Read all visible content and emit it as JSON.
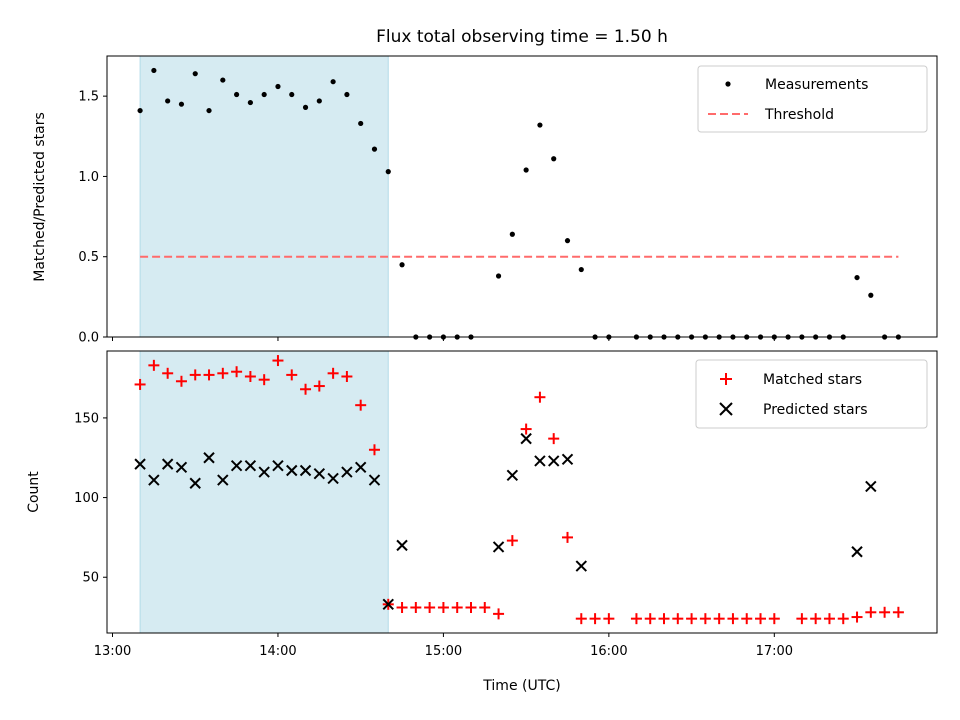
{
  "title": "Flux total observing time = 1.50 h",
  "colors": {
    "shade": "#add8e6",
    "threshold": "#ff6b6b",
    "matched": "#ff0000",
    "predicted": "#000000",
    "measure": "#000000"
  },
  "chart_data": [
    {
      "type": "scatter",
      "ylabel": "Matched/Predicted stars",
      "xlabel": "",
      "xlim": [
        "12:58",
        "17:59"
      ],
      "ylim": [
        0,
        1.75
      ],
      "yticks": [
        "0.0",
        "0.5",
        "1.0",
        "1.5"
      ],
      "shaded_interval": [
        "13:10",
        "14:40"
      ],
      "legend_position": "top-right",
      "series": [
        {
          "name": "Measurements",
          "marker": "dot",
          "x": [
            "13:10",
            "13:15",
            "13:20",
            "13:25",
            "13:30",
            "13:35",
            "13:40",
            "13:45",
            "13:50",
            "13:55",
            "14:00",
            "14:05",
            "14:10",
            "14:15",
            "14:20",
            "14:25",
            "14:30",
            "14:35",
            "14:40",
            "14:45",
            "14:50",
            "14:55",
            "15:00",
            "15:05",
            "15:10",
            "15:20",
            "15:25",
            "15:30",
            "15:35",
            "15:40",
            "15:45",
            "15:50",
            "15:55",
            "16:00",
            "16:10",
            "16:15",
            "16:20",
            "16:25",
            "16:30",
            "16:35",
            "16:40",
            "16:45",
            "16:50",
            "16:55",
            "17:00",
            "17:05",
            "17:10",
            "17:15",
            "17:20",
            "17:25",
            "17:30",
            "17:35",
            "17:40",
            "17:45"
          ],
          "y": [
            1.41,
            1.66,
            1.47,
            1.45,
            1.64,
            1.41,
            1.6,
            1.51,
            1.46,
            1.51,
            1.56,
            1.51,
            1.43,
            1.47,
            1.59,
            1.51,
            1.33,
            1.17,
            1.03,
            0.45,
            0,
            0,
            0,
            0,
            0,
            0.38,
            0.64,
            1.04,
            1.32,
            1.11,
            0.6,
            0.42,
            0,
            0,
            0,
            0,
            0,
            0,
            0,
            0,
            0,
            0,
            0,
            0,
            0,
            0,
            0,
            0,
            0,
            0,
            0.37,
            0.26,
            0,
            0
          ]
        },
        {
          "name": "Threshold",
          "marker": "dashed-line",
          "x": [
            "13:10",
            "17:45"
          ],
          "y": [
            0.5,
            0.5
          ]
        }
      ]
    },
    {
      "type": "scatter",
      "ylabel": "Count",
      "xlabel": "Time (UTC)",
      "xlim": [
        "12:58",
        "17:59"
      ],
      "ylim": [
        15,
        192
      ],
      "yticks": [
        "50",
        "100",
        "150"
      ],
      "xticks": [
        "13:00",
        "14:00",
        "15:00",
        "16:00",
        "17:00"
      ],
      "shaded_interval": [
        "13:10",
        "14:40"
      ],
      "legend_position": "top-right",
      "series": [
        {
          "name": "Matched stars",
          "marker": "plus",
          "x": [
            "13:10",
            "13:15",
            "13:20",
            "13:25",
            "13:30",
            "13:35",
            "13:40",
            "13:45",
            "13:50",
            "13:55",
            "14:00",
            "14:05",
            "14:10",
            "14:15",
            "14:20",
            "14:25",
            "14:30",
            "14:35",
            "14:40",
            "14:45",
            "14:50",
            "14:55",
            "15:00",
            "15:05",
            "15:10",
            "15:15",
            "15:20",
            "15:25",
            "15:30",
            "15:35",
            "15:40",
            "15:45",
            "15:50",
            "15:55",
            "16:00",
            "16:10",
            "16:15",
            "16:20",
            "16:25",
            "16:30",
            "16:35",
            "16:40",
            "16:45",
            "16:50",
            "16:55",
            "17:00",
            "17:10",
            "17:15",
            "17:20",
            "17:25",
            "17:30",
            "17:35",
            "17:40",
            "17:45"
          ],
          "y": [
            171,
            183,
            178,
            173,
            177,
            177,
            178,
            179,
            176,
            174,
            186,
            177,
            168,
            170,
            178,
            176,
            158,
            130,
            33,
            31,
            31,
            31,
            31,
            31,
            31,
            31,
            27,
            73,
            143,
            163,
            137,
            75,
            24,
            24,
            24,
            24,
            24,
            24,
            24,
            24,
            24,
            24,
            24,
            24,
            24,
            24,
            24,
            24,
            24,
            24,
            25,
            28,
            28,
            28
          ]
        },
        {
          "name": "Predicted stars",
          "marker": "x",
          "x": [
            "13:10",
            "13:15",
            "13:20",
            "13:25",
            "13:30",
            "13:35",
            "13:40",
            "13:45",
            "13:50",
            "13:55",
            "14:00",
            "14:05",
            "14:10",
            "14:15",
            "14:20",
            "14:25",
            "14:30",
            "14:35",
            "14:40",
            "14:45",
            "15:20",
            "15:25",
            "15:30",
            "15:35",
            "15:40",
            "15:45",
            "15:50",
            "17:30",
            "17:35"
          ],
          "y": [
            121,
            111,
            121,
            119,
            109,
            125,
            111,
            120,
            120,
            116,
            120,
            117,
            117,
            115,
            112,
            116,
            119,
            111,
            33,
            70,
            69,
            114,
            137,
            123,
            123,
            124,
            57,
            66,
            107
          ]
        }
      ]
    }
  ]
}
